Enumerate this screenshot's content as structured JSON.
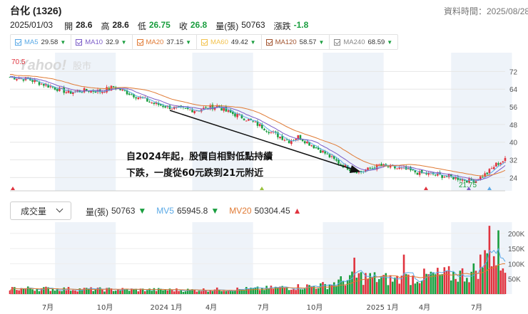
{
  "header": {
    "stock_title": "台化 (1326)",
    "data_time": "資料時間：2025/08/28"
  },
  "quote": {
    "date": "2025/01/03",
    "open_label": "開",
    "open_value": "28.6",
    "high_label": "高",
    "high_value": "28.6",
    "low_label": "低",
    "low_value": "26.75",
    "close_label": "收",
    "close_value": "26.8",
    "volume_label": "量(張)",
    "volume_value": "50763",
    "change_label": "漲跌",
    "change_value": "-1.8"
  },
  "ma_legend": [
    {
      "name": "MA5",
      "value": "29.58",
      "color": "#5aa9e6"
    },
    {
      "name": "MA10",
      "value": "32.9",
      "color": "#7b5cc8"
    },
    {
      "name": "MA20",
      "value": "37.15",
      "color": "#e07a34"
    },
    {
      "name": "MA60",
      "value": "49.42",
      "color": "#f2c24f"
    },
    {
      "name": "MA120",
      "value": "58.57",
      "color": "#a0522d"
    },
    {
      "name": "MA240",
      "value": "68.59",
      "color": "#888888"
    }
  ],
  "watermark": {
    "brand": "Yahoo!",
    "suffix": "股市"
  },
  "annotation": {
    "line1": "自2024年起，股價自相對低點持續",
    "line2": "下跌，一度從60元跌到21元附近"
  },
  "volume_panel": {
    "selector_label": "成交量",
    "vol_label": "量(張)",
    "vol_value": "50763",
    "mv5_label": "MV5",
    "mv5_value": "65945.8",
    "mv20_label": "MV20",
    "mv20_value": "50304.45"
  },
  "chart_data": [
    {
      "type": "candlestick",
      "title": "",
      "y_ticks": [
        72,
        64,
        56,
        48,
        40,
        32,
        24
      ],
      "ylim": [
        18,
        76
      ],
      "annotations": {
        "high_marker": "70.5",
        "low_marker": "21.75"
      },
      "x_ticks": [
        "7月",
        "10月",
        "2024 1月",
        "4月",
        "7月",
        "10月",
        "2025 1月",
        "4月",
        "7月"
      ],
      "close_path": [
        {
          "t": 0,
          "v": 69.5
        },
        {
          "t": 8,
          "v": 68.5
        },
        {
          "t": 14,
          "v": 66.5
        },
        {
          "t": 20,
          "v": 64.5
        },
        {
          "t": 26,
          "v": 62.5
        },
        {
          "t": 34,
          "v": 63.5
        },
        {
          "t": 40,
          "v": 63.0
        },
        {
          "t": 46,
          "v": 65.0
        },
        {
          "t": 52,
          "v": 62.5
        },
        {
          "t": 58,
          "v": 60.0
        },
        {
          "t": 64,
          "v": 57.5
        },
        {
          "t": 70,
          "v": 56.0
        },
        {
          "t": 76,
          "v": 55.0
        },
        {
          "t": 82,
          "v": 54.5
        },
        {
          "t": 88,
          "v": 55.5
        },
        {
          "t": 92,
          "v": 56.5
        },
        {
          "t": 96,
          "v": 54.0
        },
        {
          "t": 100,
          "v": 52.5
        },
        {
          "t": 104,
          "v": 51.0
        },
        {
          "t": 108,
          "v": 49.0
        },
        {
          "t": 112,
          "v": 47.0
        },
        {
          "t": 116,
          "v": 44.5
        },
        {
          "t": 120,
          "v": 42.5
        },
        {
          "t": 124,
          "v": 40.5
        },
        {
          "t": 128,
          "v": 42.5
        },
        {
          "t": 132,
          "v": 40.0
        },
        {
          "t": 136,
          "v": 37.5
        },
        {
          "t": 140,
          "v": 35.0
        },
        {
          "t": 144,
          "v": 32.0
        },
        {
          "t": 148,
          "v": 29.5
        },
        {
          "t": 152,
          "v": 27.5
        },
        {
          "t": 156,
          "v": 26.5
        },
        {
          "t": 160,
          "v": 28.0
        },
        {
          "t": 164,
          "v": 29.5
        },
        {
          "t": 170,
          "v": 28.5
        },
        {
          "t": 176,
          "v": 27.5
        },
        {
          "t": 182,
          "v": 26.0
        },
        {
          "t": 188,
          "v": 25.5
        },
        {
          "t": 194,
          "v": 24.5
        },
        {
          "t": 200,
          "v": 23.5
        },
        {
          "t": 204,
          "v": 22.5
        },
        {
          "t": 207,
          "v": 23.0
        },
        {
          "t": 212,
          "v": 26.0
        },
        {
          "t": 216,
          "v": 30.0
        },
        {
          "t": 220,
          "v": 32.0
        }
      ],
      "series": [
        {
          "name": "MA5",
          "color": "#5aa9e6"
        },
        {
          "name": "MA10",
          "color": "#7b5cc8"
        },
        {
          "name": "MA20",
          "color": "#e07a34"
        }
      ]
    },
    {
      "type": "bar",
      "title": "",
      "y_ticks": [
        "200K",
        "150K",
        "100K",
        "50K"
      ],
      "ylim": [
        0,
        230000
      ],
      "volume_profile": [
        {
          "t": 0,
          "v": 20000
        },
        {
          "t": 40,
          "v": 16000
        },
        {
          "t": 80,
          "v": 14000
        },
        {
          "t": 110,
          "v": 18000
        },
        {
          "t": 140,
          "v": 30000
        },
        {
          "t": 155,
          "v": 60000
        },
        {
          "t": 170,
          "v": 50000
        },
        {
          "t": 190,
          "v": 65000
        },
        {
          "t": 205,
          "v": 70000
        },
        {
          "t": 212,
          "v": 130000
        },
        {
          "t": 220,
          "v": 110000
        }
      ],
      "spikes": [
        {
          "t": 213,
          "v": 225000
        },
        {
          "t": 217,
          "v": 210000
        },
        {
          "t": 153,
          "v": 120000
        },
        {
          "t": 175,
          "v": 130000
        }
      ],
      "series": [
        {
          "name": "MV5",
          "color": "#5aa9e6"
        },
        {
          "name": "MV20",
          "color": "#e07a34"
        }
      ]
    }
  ],
  "colors": {
    "up": "#e0343f",
    "down": "#1a9e3f",
    "shade": "#eef3f9"
  }
}
